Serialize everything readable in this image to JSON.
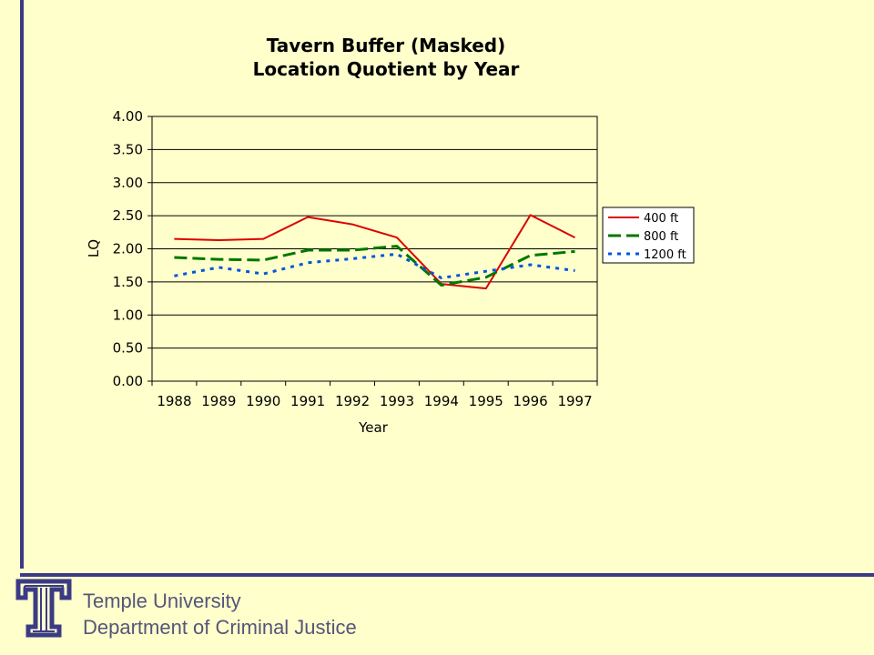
{
  "footer": {
    "line1": "Temple University",
    "line2": "Department of Criminal Justice"
  },
  "logo": {
    "icon": "temple-t-logo-icon",
    "color": "#3B3B85"
  },
  "colors": {
    "background": "#FFFFCC",
    "rule": "#3B3B85",
    "footer_text": "#55557A"
  },
  "chart_data": {
    "type": "line",
    "title": [
      "Tavern Buffer (Masked)",
      "Location Quotient by Year"
    ],
    "xlabel": "Year",
    "ylabel": "LQ",
    "categories": [
      "1988",
      "1989",
      "1990",
      "1991",
      "1992",
      "1993",
      "1994",
      "1995",
      "1996",
      "1997"
    ],
    "ylim": [
      0,
      4
    ],
    "yticks": [
      "0.00",
      "0.50",
      "1.00",
      "1.50",
      "2.00",
      "2.50",
      "3.00",
      "3.50",
      "4.00"
    ],
    "grid": "horizontal",
    "legend": "right",
    "series": [
      {
        "name": "400 ft",
        "color": "#DD0000",
        "style": "solid",
        "values": [
          2.15,
          2.13,
          2.15,
          2.48,
          2.37,
          2.17,
          1.47,
          1.4,
          2.51,
          2.17
        ]
      },
      {
        "name": "800 ft",
        "color": "#007700",
        "style": "dashed",
        "values": [
          1.87,
          1.84,
          1.83,
          1.98,
          1.98,
          2.04,
          1.45,
          1.57,
          1.9,
          1.96
        ]
      },
      {
        "name": "1200 ft",
        "color": "#0055DD",
        "style": "dotted",
        "values": [
          1.59,
          1.72,
          1.62,
          1.79,
          1.85,
          1.92,
          1.56,
          1.66,
          1.76,
          1.67
        ]
      }
    ]
  }
}
